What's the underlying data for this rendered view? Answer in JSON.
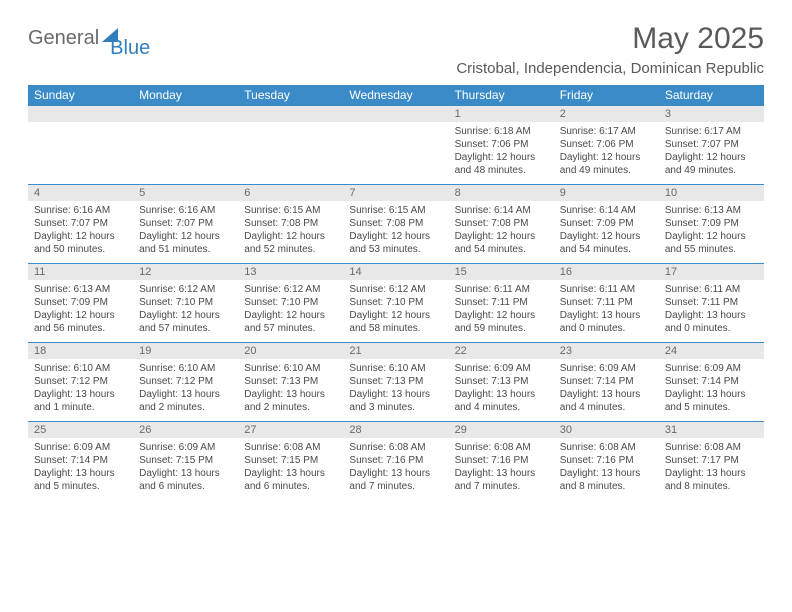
{
  "brand": {
    "part1": "General",
    "part2": "Blue"
  },
  "title": "May 2025",
  "location": "Cristobal, Independencia, Dominican Republic",
  "header_color": "#3b8bc8",
  "weekdays": [
    "Sunday",
    "Monday",
    "Tuesday",
    "Wednesday",
    "Thursday",
    "Friday",
    "Saturday"
  ],
  "weeks": [
    [
      null,
      null,
      null,
      null,
      {
        "n": "1",
        "sr": "6:18 AM",
        "ss": "7:06 PM",
        "dl": "12 hours and 48 minutes."
      },
      {
        "n": "2",
        "sr": "6:17 AM",
        "ss": "7:06 PM",
        "dl": "12 hours and 49 minutes."
      },
      {
        "n": "3",
        "sr": "6:17 AM",
        "ss": "7:07 PM",
        "dl": "12 hours and 49 minutes."
      }
    ],
    [
      {
        "n": "4",
        "sr": "6:16 AM",
        "ss": "7:07 PM",
        "dl": "12 hours and 50 minutes."
      },
      {
        "n": "5",
        "sr": "6:16 AM",
        "ss": "7:07 PM",
        "dl": "12 hours and 51 minutes."
      },
      {
        "n": "6",
        "sr": "6:15 AM",
        "ss": "7:08 PM",
        "dl": "12 hours and 52 minutes."
      },
      {
        "n": "7",
        "sr": "6:15 AM",
        "ss": "7:08 PM",
        "dl": "12 hours and 53 minutes."
      },
      {
        "n": "8",
        "sr": "6:14 AM",
        "ss": "7:08 PM",
        "dl": "12 hours and 54 minutes."
      },
      {
        "n": "9",
        "sr": "6:14 AM",
        "ss": "7:09 PM",
        "dl": "12 hours and 54 minutes."
      },
      {
        "n": "10",
        "sr": "6:13 AM",
        "ss": "7:09 PM",
        "dl": "12 hours and 55 minutes."
      }
    ],
    [
      {
        "n": "11",
        "sr": "6:13 AM",
        "ss": "7:09 PM",
        "dl": "12 hours and 56 minutes."
      },
      {
        "n": "12",
        "sr": "6:12 AM",
        "ss": "7:10 PM",
        "dl": "12 hours and 57 minutes."
      },
      {
        "n": "13",
        "sr": "6:12 AM",
        "ss": "7:10 PM",
        "dl": "12 hours and 57 minutes."
      },
      {
        "n": "14",
        "sr": "6:12 AM",
        "ss": "7:10 PM",
        "dl": "12 hours and 58 minutes."
      },
      {
        "n": "15",
        "sr": "6:11 AM",
        "ss": "7:11 PM",
        "dl": "12 hours and 59 minutes."
      },
      {
        "n": "16",
        "sr": "6:11 AM",
        "ss": "7:11 PM",
        "dl": "13 hours and 0 minutes."
      },
      {
        "n": "17",
        "sr": "6:11 AM",
        "ss": "7:11 PM",
        "dl": "13 hours and 0 minutes."
      }
    ],
    [
      {
        "n": "18",
        "sr": "6:10 AM",
        "ss": "7:12 PM",
        "dl": "13 hours and 1 minute."
      },
      {
        "n": "19",
        "sr": "6:10 AM",
        "ss": "7:12 PM",
        "dl": "13 hours and 2 minutes."
      },
      {
        "n": "20",
        "sr": "6:10 AM",
        "ss": "7:13 PM",
        "dl": "13 hours and 2 minutes."
      },
      {
        "n": "21",
        "sr": "6:10 AM",
        "ss": "7:13 PM",
        "dl": "13 hours and 3 minutes."
      },
      {
        "n": "22",
        "sr": "6:09 AM",
        "ss": "7:13 PM",
        "dl": "13 hours and 4 minutes."
      },
      {
        "n": "23",
        "sr": "6:09 AM",
        "ss": "7:14 PM",
        "dl": "13 hours and 4 minutes."
      },
      {
        "n": "24",
        "sr": "6:09 AM",
        "ss": "7:14 PM",
        "dl": "13 hours and 5 minutes."
      }
    ],
    [
      {
        "n": "25",
        "sr": "6:09 AM",
        "ss": "7:14 PM",
        "dl": "13 hours and 5 minutes."
      },
      {
        "n": "26",
        "sr": "6:09 AM",
        "ss": "7:15 PM",
        "dl": "13 hours and 6 minutes."
      },
      {
        "n": "27",
        "sr": "6:08 AM",
        "ss": "7:15 PM",
        "dl": "13 hours and 6 minutes."
      },
      {
        "n": "28",
        "sr": "6:08 AM",
        "ss": "7:16 PM",
        "dl": "13 hours and 7 minutes."
      },
      {
        "n": "29",
        "sr": "6:08 AM",
        "ss": "7:16 PM",
        "dl": "13 hours and 7 minutes."
      },
      {
        "n": "30",
        "sr": "6:08 AM",
        "ss": "7:16 PM",
        "dl": "13 hours and 8 minutes."
      },
      {
        "n": "31",
        "sr": "6:08 AM",
        "ss": "7:17 PM",
        "dl": "13 hours and 8 minutes."
      }
    ]
  ],
  "labels": {
    "sunrise": "Sunrise:",
    "sunset": "Sunset:",
    "daylight": "Daylight:"
  }
}
